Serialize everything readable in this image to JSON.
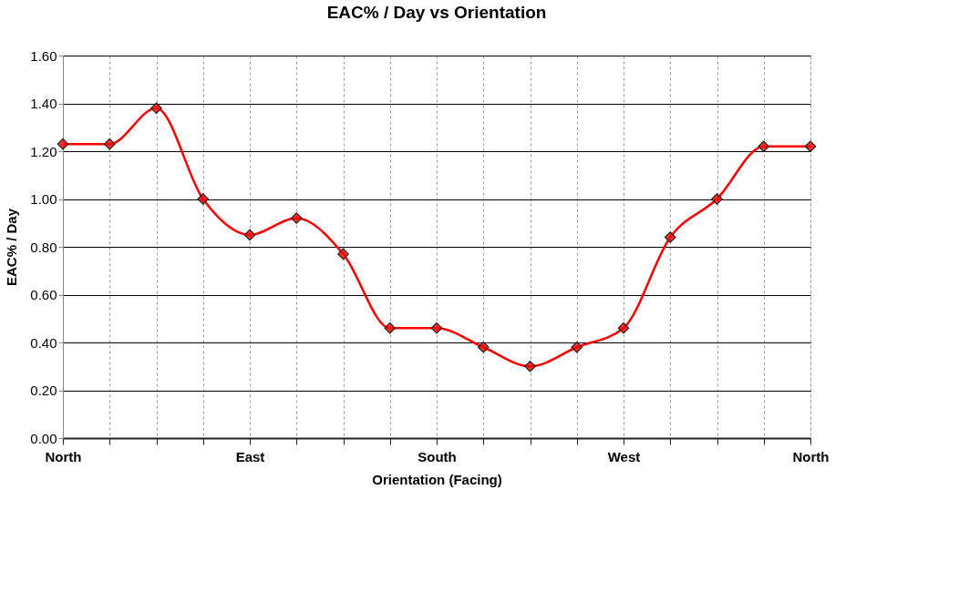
{
  "chart_data": {
    "type": "line",
    "title": "EAC% / Day vs Orientation",
    "xlabel": "Orientation (Facing)",
    "ylabel": "EAC% / Day",
    "categories": [
      "North",
      null,
      null,
      null,
      "East",
      null,
      null,
      null,
      "South",
      null,
      null,
      null,
      "West",
      null,
      null,
      null,
      "North"
    ],
    "series": [
      {
        "color": "#ff0000",
        "values": [
          1.23,
          1.23,
          1.38,
          1.0,
          0.85,
          0.92,
          0.77,
          0.46,
          0.46,
          0.38,
          0.3,
          0.38,
          0.46,
          0.84,
          1.0,
          1.22,
          1.22
        ]
      }
    ],
    "ylim": [
      0,
      1.6
    ],
    "yticks": [
      {
        "value": 0,
        "label": "0.00"
      },
      {
        "value": 0.2,
        "label": "0.20"
      },
      {
        "value": 0.4,
        "label": "0.40"
      },
      {
        "value": 0.6,
        "label": "0.60"
      },
      {
        "value": 0.8,
        "label": "0.80"
      },
      {
        "value": 1.0,
        "label": "1.00"
      },
      {
        "value": 1.2,
        "label": "1.20"
      },
      {
        "value": 1.4,
        "label": "1.40"
      },
      {
        "value": 1.6,
        "label": "1.60"
      }
    ],
    "grid": true,
    "marker": "diamond"
  }
}
